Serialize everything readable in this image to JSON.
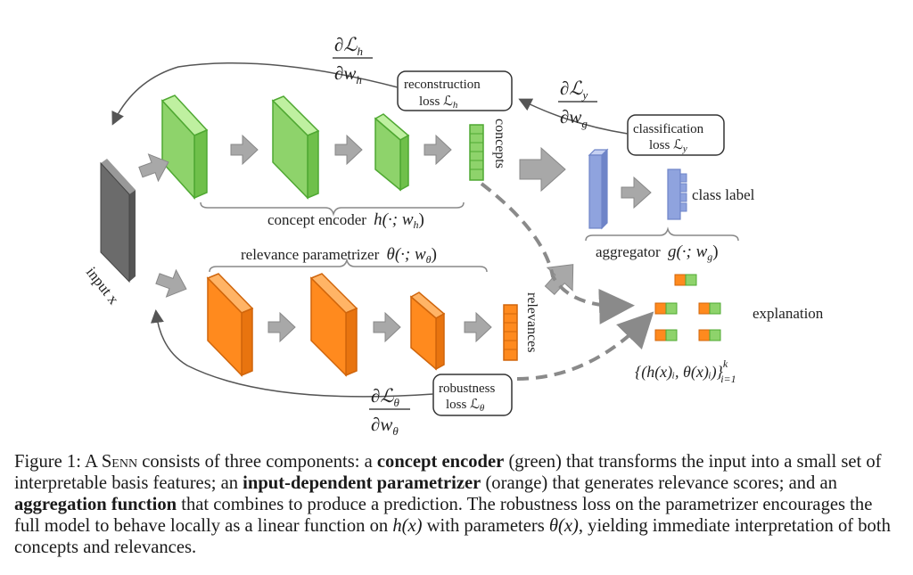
{
  "figure": {
    "input_label": "input x",
    "concepts_label": "concepts",
    "relevances_label": "relevances",
    "class_label": "class label",
    "explanation_label": "explanation",
    "concept_encoder_label": "concept encoder",
    "concept_encoder_math": "h(·; w",
    "concept_encoder_math_sub": "h",
    "relevance_label": "relevance parametrizer",
    "relevance_math": "θ(·; w",
    "relevance_math_sub": "θ",
    "aggregator_label": "aggregator",
    "aggregator_math": "g(·; w",
    "aggregator_math_sub": "g",
    "reconstruction_line1": "reconstruction",
    "reconstruction_line2": "loss ℒ",
    "reconstruction_sub": "h",
    "classification_line1": "classification",
    "classification_line2": "loss ℒ",
    "classification_sub": "y",
    "robustness_line1": "robustness",
    "robustness_line2": "loss ℒ",
    "robustness_sub": "θ",
    "grad_h_num": "∂ℒ",
    "grad_h_num_sub": "h",
    "grad_h_den": "∂w",
    "grad_h_den_sub": "h",
    "grad_y_num": "∂ℒ",
    "grad_y_num_sub": "y",
    "grad_y_den": "∂w",
    "grad_y_den_sub": "g",
    "grad_t_num": "∂ℒ",
    "grad_t_num_sub": "θ",
    "grad_t_den": "∂w",
    "grad_t_den_sub": "θ",
    "explanation_formula": "{(h(x)ᵢ, θ(x)ᵢ)}",
    "explanation_formula_sup": "k",
    "explanation_formula_sub": "i=1",
    "colors": {
      "green": "#8ed36b",
      "green_dark": "#4fa832",
      "orange": "#ff8a1e",
      "orange_dark": "#d0650b",
      "blue": "#8fa3de",
      "gray": "#9a9a9a",
      "input_gray": "#6b6b6b"
    }
  },
  "caption": {
    "prefix": "Figure 1: A ",
    "senn": "Senn",
    "part1": " consists of three components: a ",
    "bold1": "concept encoder",
    "part2": " (green) that transforms the input into a small set of interpretable basis features; an ",
    "bold2": "input-dependent parametrizer",
    "part3": " (orange) that generates relevance scores; and an ",
    "bold3": "aggregation function",
    "part4": " that combines to produce a prediction. The robustness loss on the parametrizer encourages the full model to behave locally as a linear function on ",
    "math1": "h(x)",
    "part5": " with parameters ",
    "math2": "θ(x)",
    "part6": ", yielding immediate interpretation of both concepts and relevances."
  }
}
